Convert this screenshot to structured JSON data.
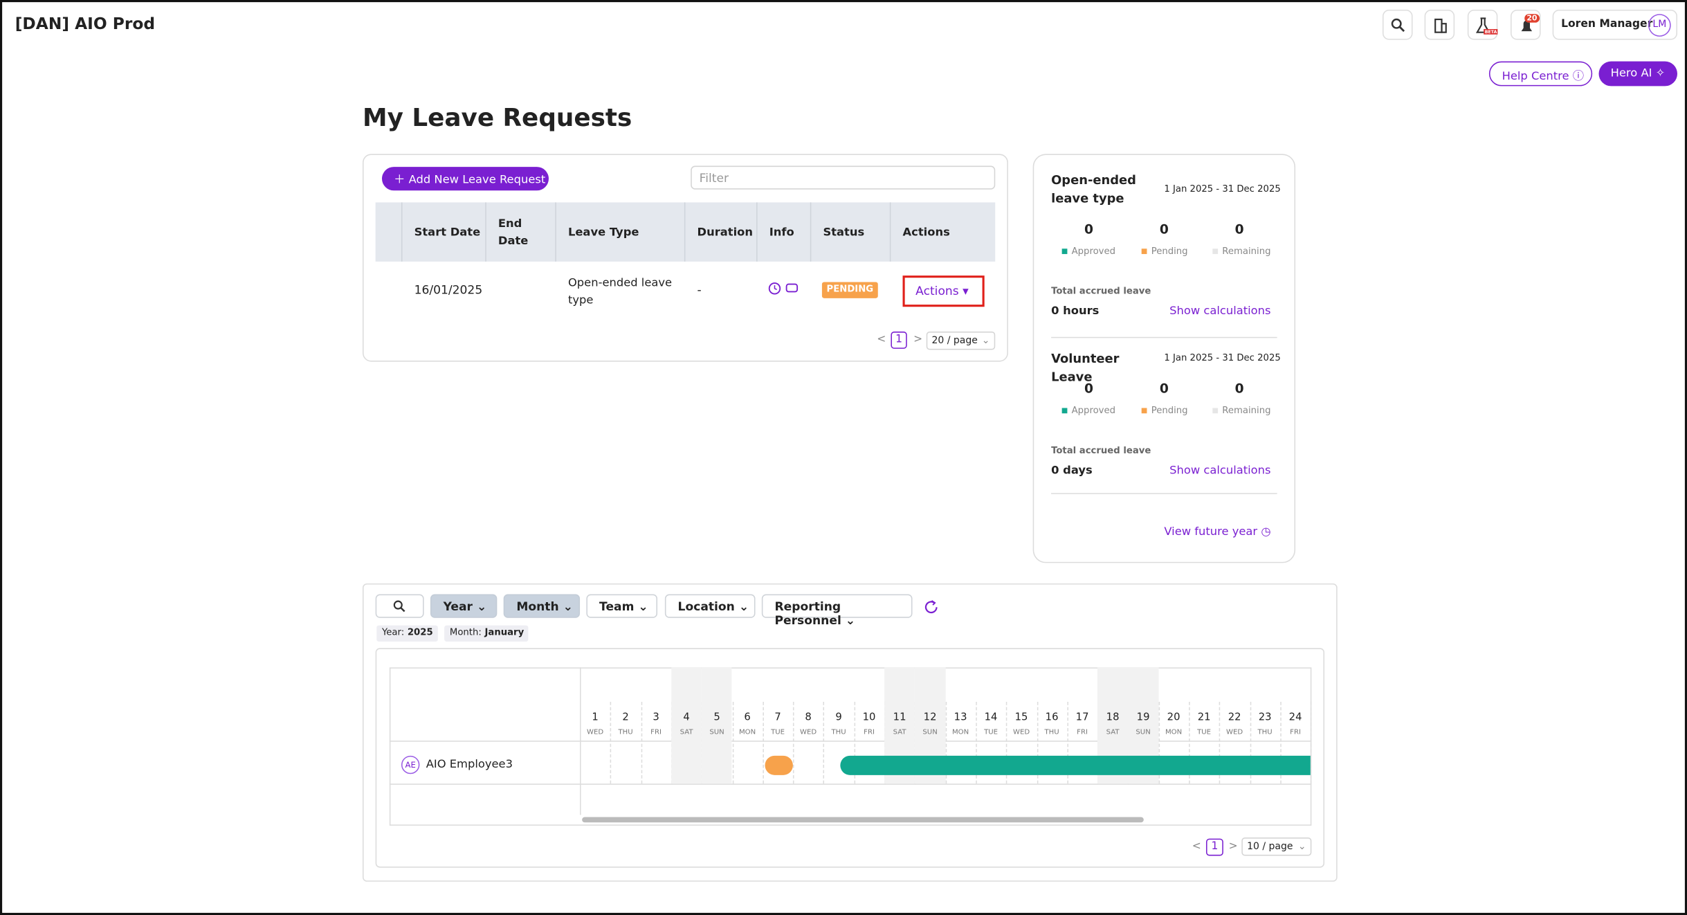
{
  "header": {
    "title": "[DAN] AIO Prod",
    "beta": "BETA",
    "notification_count": "20",
    "user_name": "Loren Manager",
    "user_initials": "LM",
    "help_centre": "Help Centre",
    "hero_ai": "Hero AI"
  },
  "page_title": "My Leave Requests",
  "requests": {
    "add_button": "Add New Leave Request",
    "filter_placeholder": "Filter",
    "columns": [
      "Start Date",
      "End Date",
      "Leave Type",
      "Duration",
      "Info",
      "Status",
      "Actions"
    ],
    "rows": [
      {
        "start_date": "16/01/2025",
        "leave_type": "Open-ended leave type",
        "duration": "-",
        "status": "PENDING",
        "action": "Actions"
      }
    ],
    "pagination": {
      "current": "1",
      "page_size": "20 / page"
    }
  },
  "balances": {
    "labels": {
      "approved": "Approved",
      "pending": "Pending",
      "remaining": "Remaining",
      "accrued": "Total accrued leave",
      "link": "Show calculations"
    },
    "items": [
      {
        "name": "Open-ended leave type",
        "period": "1 Jan 2025 - 31 Dec 2025",
        "approved": 0,
        "pending": 0,
        "remaining": 0,
        "accrued": "0 hours"
      },
      {
        "name": "Volunteer Leave",
        "period": "1 Jan 2025 - 31 Dec 2025",
        "approved": 0,
        "pending": 0,
        "remaining": 0,
        "accrued": "0 days"
      }
    ],
    "future_link": "View future year"
  },
  "calendar": {
    "filters": [
      "Year",
      "Month",
      "Team",
      "Location",
      "Reporting Personnel"
    ],
    "tags": [
      {
        "label": "Year:",
        "value": "2025"
      },
      {
        "label": "Month:",
        "value": "January"
      }
    ],
    "days": [
      1,
      2,
      3,
      4,
      5,
      6,
      7,
      8,
      9,
      10,
      11,
      12,
      13,
      14,
      15,
      16,
      17,
      18,
      19,
      20,
      21,
      22,
      23,
      24
    ],
    "weekdays": [
      "WED",
      "THU",
      "FRI",
      "SAT",
      "SUN",
      "MON",
      "TUE",
      "WED",
      "THU",
      "FRI",
      "SAT",
      "SUN",
      "MON",
      "TUE",
      "WED",
      "THU",
      "FRI",
      "SAT",
      "SUN",
      "MON",
      "TUE",
      "WED",
      "THU",
      "FRI"
    ],
    "employee": {
      "initials": "AE",
      "name": "AIO Employee3"
    },
    "pagination": {
      "current": "1",
      "page_size": "10 / page"
    }
  }
}
